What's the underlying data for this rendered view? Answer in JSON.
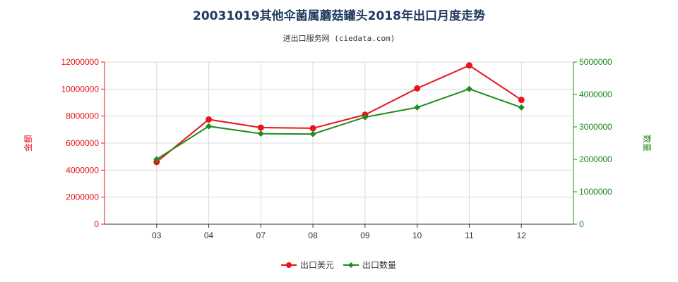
{
  "chart_data": {
    "type": "line",
    "title": "20031019其他伞菌属蘑菇罐头2018年出口月度走势",
    "subtitle": "进出口服务网 (ciedata.com)",
    "categories": [
      "03",
      "04",
      "07",
      "08",
      "09",
      "10",
      "11",
      "12"
    ],
    "series": [
      {
        "name": "出口美元",
        "axis": "left",
        "color": "#e8141a",
        "values": [
          4600000,
          7750000,
          7150000,
          7100000,
          8100000,
          10050000,
          11750000,
          9200000
        ]
      },
      {
        "name": "出口数量",
        "axis": "right",
        "color": "#1e8c1e",
        "values": [
          2000000,
          3020000,
          2790000,
          2780000,
          3300000,
          3600000,
          4170000,
          3600000
        ]
      }
    ],
    "y_left": {
      "label": "金额",
      "range": [
        0,
        12000000
      ],
      "ticks": [
        "0",
        "2000000",
        "4000000",
        "6000000",
        "8000000",
        "10000000",
        "12000000"
      ],
      "color": "#e8141a"
    },
    "y_right": {
      "label": "数量",
      "range": [
        0,
        5000000
      ],
      "ticks": [
        "0",
        "1000000",
        "2000000",
        "3000000",
        "4000000",
        "5000000"
      ],
      "color": "#1e8c1e"
    },
    "grid": true,
    "legend_position": "bottom"
  }
}
